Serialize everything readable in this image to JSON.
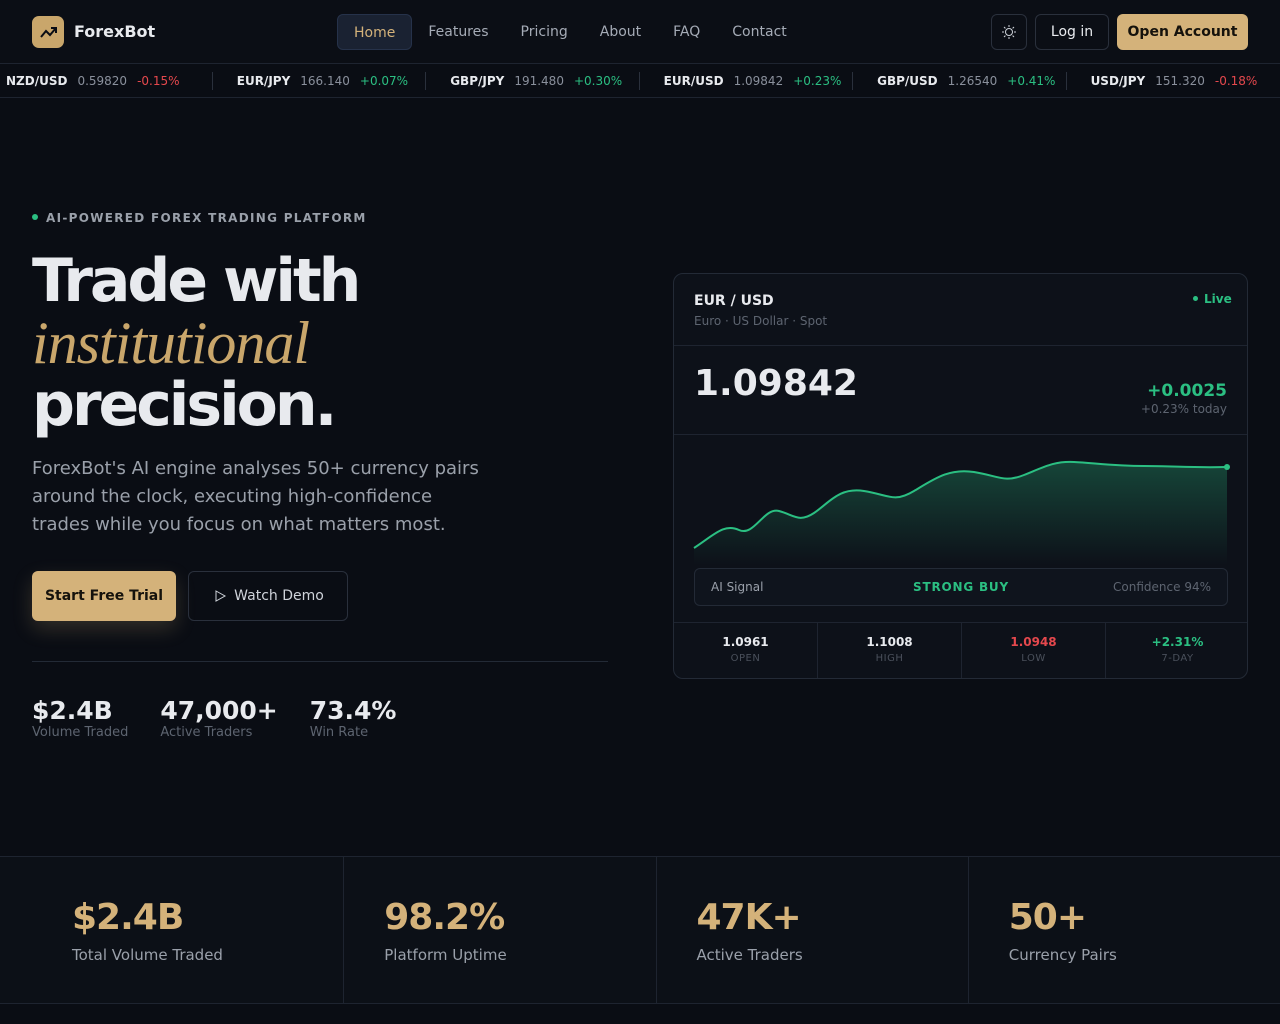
{
  "nav": {
    "brand": "ForexBot",
    "links": [
      "Home",
      "Features",
      "Pricing",
      "About",
      "FAQ",
      "Contact"
    ],
    "login": "Log in",
    "open": "Open Account"
  },
  "ticker": [
    {
      "pair": "NZD/USD",
      "price": "0.59820",
      "change": "-0.15%"
    },
    {
      "pair": "EUR/JPY",
      "price": "166.140",
      "change": "+0.07%"
    },
    {
      "pair": "GBP/JPY",
      "price": "191.480",
      "change": "+0.30%"
    },
    {
      "pair": "EUR/USD",
      "price": "1.09842",
      "change": "+0.23%"
    },
    {
      "pair": "GBP/USD",
      "price": "1.26540",
      "change": "+0.41%"
    },
    {
      "pair": "USD/JPY",
      "price": "151.320",
      "change": "-0.18%"
    }
  ],
  "hero": {
    "eyebrow": "AI-POWERED FOREX TRADING PLATFORM",
    "title": [
      "Trade with",
      "institutional",
      "precision."
    ],
    "text": "ForexBot's AI engine analyses 50+ currency pairs around the clock, executing high-confidence trades while you focus on what matters most.",
    "cta": "Start Free Trial",
    "demo": "Watch Demo",
    "stats": [
      {
        "value": "$2.4B",
        "label": "Volume Traded"
      },
      {
        "value": "47,000+",
        "label": "Active Traders"
      },
      {
        "value": "73.4%",
        "label": "Win Rate"
      }
    ]
  },
  "card": {
    "pair": "EUR / USD",
    "sub": "Euro · US Dollar · Spot",
    "status": "Live",
    "price": "1.09842",
    "change": "+0.0025",
    "change_pct": "+0.23% today",
    "signal_label": "AI Signal",
    "signal": "STRONG BUY",
    "confidence": "Confidence 94%",
    "cells": [
      {
        "value": "1.0961",
        "label": "OPEN"
      },
      {
        "value": "1.1008",
        "label": "HIGH"
      },
      {
        "value": "1.0948",
        "label": "LOW"
      },
      {
        "value": "+2.31%",
        "label": "7-DAY"
      }
    ]
  },
  "stats": [
    {
      "value": "$2.4B",
      "label": "Total Volume Traded"
    },
    {
      "value": "98.2%",
      "label": "Platform Uptime"
    },
    {
      "value": "47K+",
      "label": "Active Traders"
    },
    {
      "value": "50+",
      "label": "Currency Pairs"
    }
  ]
}
